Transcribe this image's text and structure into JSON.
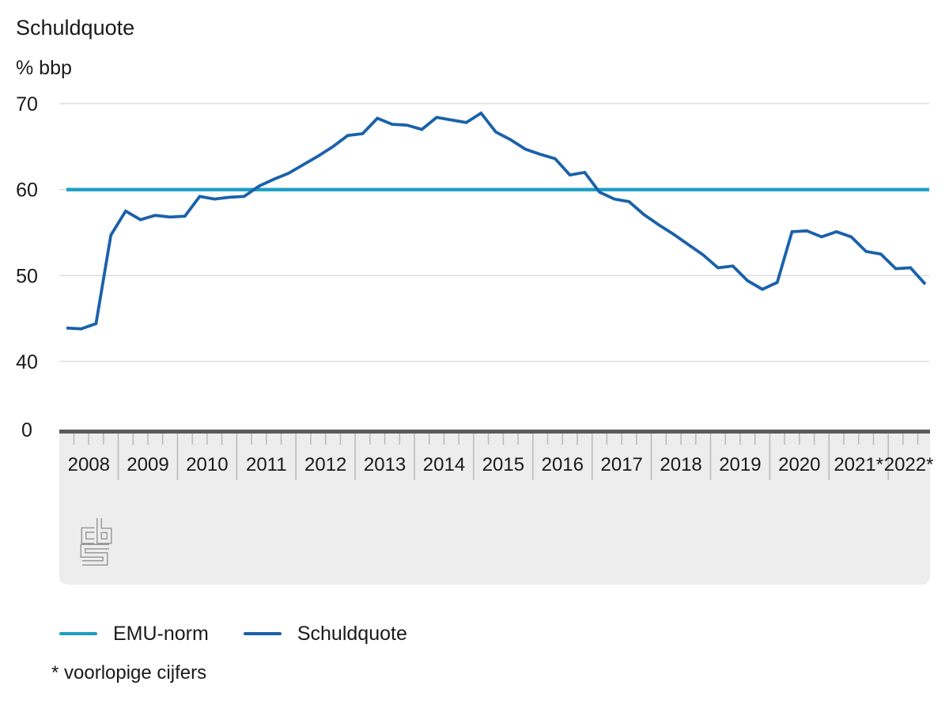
{
  "page": {
    "title": "Schuldquote",
    "unit_label": "% bbp",
    "footnote": "* voorlopige cijfers",
    "brand": "cbs-logo"
  },
  "colors": {
    "emu_norm": "#1b9ec2",
    "schuldquote": "#1a61aa",
    "gridline": "#cdcdcd",
    "axis_bar": "#5b5b5d",
    "axis_band": "#ededed",
    "tick": "#b9b9b9",
    "text": "#1a1a1a",
    "logo": "#9b9b9b"
  },
  "chart_data": {
    "type": "line",
    "title": "Schuldquote",
    "ylabel": "% bbp",
    "yticks": [
      70,
      60,
      50,
      40
    ],
    "y_axis_zero_label": "0",
    "ylim": [
      40,
      70
    ],
    "axis_break_below": 40,
    "grid": true,
    "legend_position": "bottom",
    "x_unit": "quarter",
    "years": [
      {
        "label": "2008",
        "quarters": 4
      },
      {
        "label": "2009",
        "quarters": 4
      },
      {
        "label": "2010",
        "quarters": 4
      },
      {
        "label": "2011",
        "quarters": 4
      },
      {
        "label": "2012",
        "quarters": 4
      },
      {
        "label": "2013",
        "quarters": 4
      },
      {
        "label": "2014",
        "quarters": 4
      },
      {
        "label": "2015",
        "quarters": 4
      },
      {
        "label": "2016",
        "quarters": 4
      },
      {
        "label": "2017",
        "quarters": 4
      },
      {
        "label": "2018",
        "quarters": 4
      },
      {
        "label": "2019",
        "quarters": 4
      },
      {
        "label": "2020",
        "quarters": 4
      },
      {
        "label": "2021*",
        "quarters": 4
      },
      {
        "label": "2022*",
        "quarters": 3
      }
    ],
    "series": [
      {
        "name": "EMU-norm",
        "type": "constant",
        "value": 60,
        "color": "#1b9ec2"
      },
      {
        "name": "Schuldquote",
        "type": "quarterly",
        "start": "2008 Q1",
        "end": "2022 Q3",
        "color": "#1a61aa",
        "values": [
          43.9,
          43.8,
          44.4,
          54.7,
          57.5,
          56.5,
          57.0,
          56.8,
          56.9,
          59.2,
          58.9,
          59.1,
          59.2,
          60.4,
          61.2,
          61.9,
          62.9,
          63.9,
          65.0,
          66.3,
          66.5,
          68.3,
          67.6,
          67.5,
          67.0,
          68.4,
          68.1,
          67.8,
          68.9,
          66.7,
          65.8,
          64.7,
          64.1,
          63.6,
          61.7,
          62.0,
          59.7,
          58.9,
          58.6,
          57.1,
          55.9,
          54.8,
          53.6,
          52.4,
          50.9,
          51.1,
          49.4,
          48.4,
          49.2,
          55.1,
          55.2,
          54.5,
          55.1,
          54.5,
          52.8,
          52.5,
          50.8,
          50.9,
          49.0
        ]
      }
    ]
  }
}
